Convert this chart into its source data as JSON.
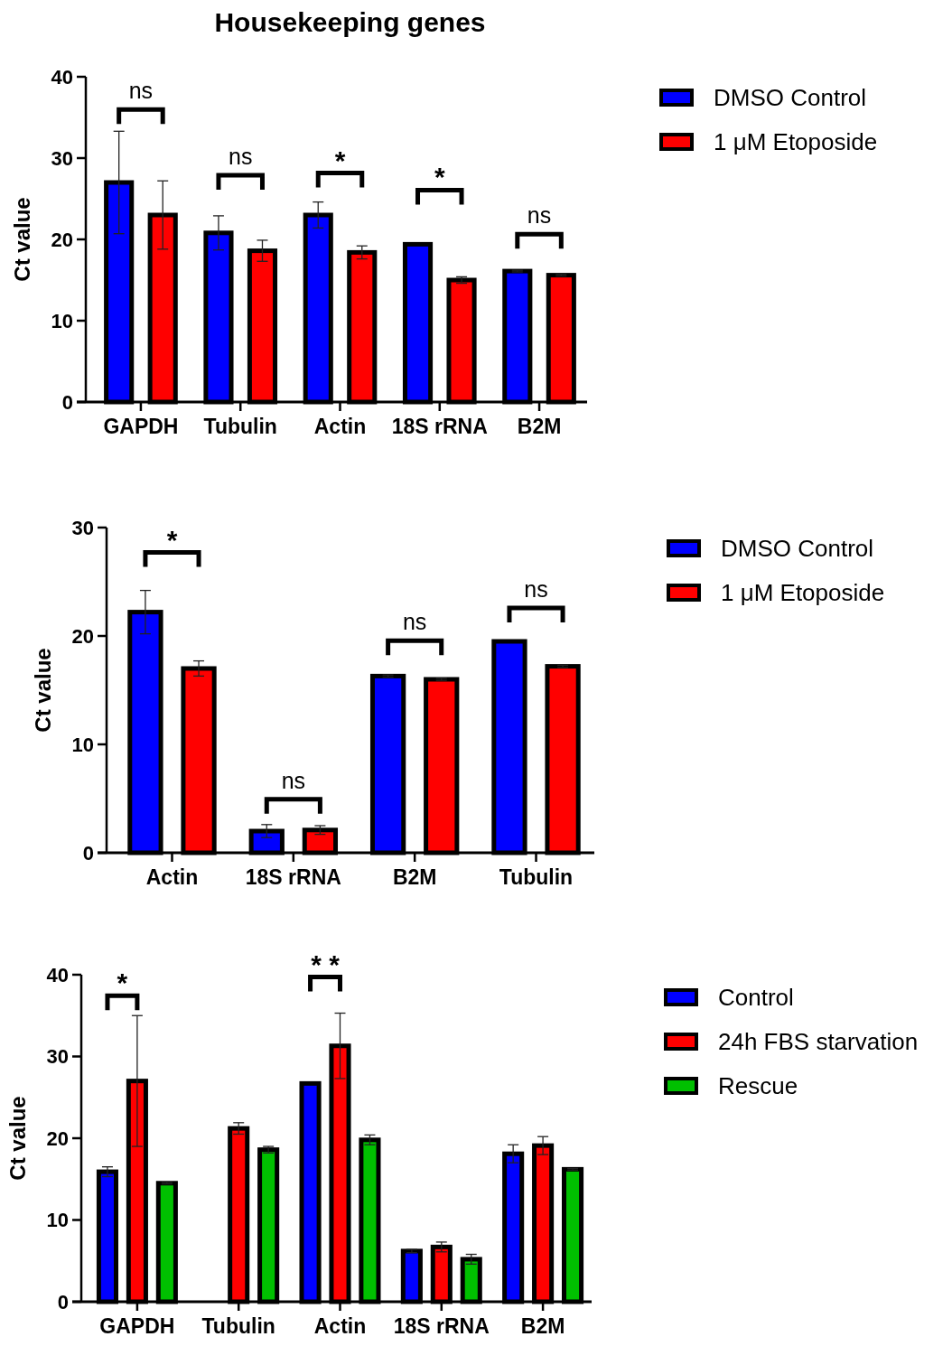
{
  "chart_data": [
    {
      "type": "bar",
      "title": "Housekeeping genes",
      "ylabel": "Ct value",
      "categories": [
        "GAPDH",
        "Tubulin",
        "Actin",
        "18S rRNA",
        "B2M"
      ],
      "ylim": [
        0,
        40
      ],
      "yticks": [
        0,
        10,
        20,
        30,
        40
      ],
      "legend": "right",
      "grid": false,
      "series": [
        {
          "name": "DMSO Control",
          "color": "#0000ff",
          "values": [
            27,
            20.8,
            23,
            19.4,
            16.1
          ],
          "errors": [
            6.3,
            2.1,
            1.6,
            null,
            0.1
          ]
        },
        {
          "name": "1 μM Etoposide",
          "color": "#ff0000",
          "values": [
            23,
            18.6,
            18.4,
            15,
            15.6
          ],
          "errors": [
            4.2,
            1.3,
            0.8,
            0.4,
            0.1
          ]
        }
      ],
      "annotations": [
        "ns",
        "ns",
        "*",
        "*",
        "ns"
      ]
    },
    {
      "type": "bar",
      "ylabel": "Ct value",
      "categories": [
        "Actin",
        "18S rRNA",
        "B2M",
        "Tubulin"
      ],
      "ylim": [
        0,
        30
      ],
      "yticks": [
        0,
        10,
        20,
        30
      ],
      "legend": "right",
      "grid": false,
      "series": [
        {
          "name": "DMSO Control",
          "color": "#0000ff",
          "values": [
            22.2,
            2,
            16.3,
            19.5
          ],
          "errors": [
            2,
            0.6,
            0.1,
            null
          ]
        },
        {
          "name": "1 μM Etoposide",
          "color": "#ff0000",
          "values": [
            17,
            2.1,
            16,
            17.2
          ],
          "errors": [
            0.7,
            0.4,
            0.1,
            0.1
          ]
        }
      ],
      "annotations": [
        "*",
        "ns",
        "ns",
        "ns"
      ]
    },
    {
      "type": "bar",
      "ylabel": "Ct value",
      "categories": [
        "GAPDH",
        "Tubulin",
        "Actin",
        "18S rRNA",
        "B2M"
      ],
      "ylim": [
        0,
        40
      ],
      "yticks": [
        0,
        10,
        20,
        30,
        40
      ],
      "legend": "right",
      "grid": false,
      "series": [
        {
          "name": "Control",
          "color": "#0000ff",
          "values": [
            15.9,
            null,
            26.7,
            6.2,
            18.1
          ],
          "errors": [
            0.6,
            null,
            null,
            0.2,
            1.1
          ]
        },
        {
          "name": "24h FBS starvation",
          "color": "#ff0000",
          "values": [
            27,
            21.2,
            31.3,
            6.7,
            19.1
          ],
          "errors": [
            8,
            0.7,
            4,
            0.6,
            1.1
          ]
        },
        {
          "name": "Rescue",
          "color": "#00c000",
          "values": [
            14.5,
            18.6,
            19.8,
            5.2,
            16.2
          ],
          "errors": [
            0.1,
            0.4,
            0.6,
            0.6,
            0.1
          ]
        }
      ],
      "annotations": [
        "*",
        "* *"
      ]
    }
  ]
}
